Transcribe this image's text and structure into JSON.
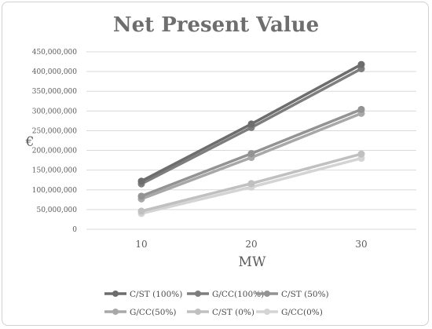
{
  "chart_data": {
    "type": "line",
    "title": "Net Present Value",
    "xlabel": "MW",
    "ylabel": "€",
    "categories": [
      "10",
      "20",
      "30"
    ],
    "ylim": [
      0,
      450000000
    ],
    "yticks": [
      "0",
      "50,000,000",
      "100,000,000",
      "150,000,000",
      "200,000,000",
      "250,000,000",
      "300,000,000",
      "350,000,000",
      "400,000,000",
      "450,000,000"
    ],
    "grid": true,
    "legend_position": "bottom",
    "series": [
      {
        "name": "C/ST (100%)",
        "values": [
          122000000,
          267000000,
          418000000
        ],
        "color": "#6d6d6d"
      },
      {
        "name": "G/CC(100%)",
        "values": [
          115000000,
          258000000,
          407000000
        ],
        "color": "#7e7e7e"
      },
      {
        "name": "C/ST (50%)",
        "values": [
          84000000,
          192000000,
          304000000
        ],
        "color": "#939393"
      },
      {
        "name": "G/CC(50%)",
        "values": [
          77000000,
          182000000,
          294000000
        ],
        "color": "#a8a8a8"
      },
      {
        "name": "C/ST (0%)",
        "values": [
          46000000,
          116000000,
          191000000
        ],
        "color": "#c0c0c0"
      },
      {
        "name": "G/CC(0%)",
        "values": [
          40000000,
          107000000,
          180000000
        ],
        "color": "#d4d4d4"
      }
    ]
  }
}
